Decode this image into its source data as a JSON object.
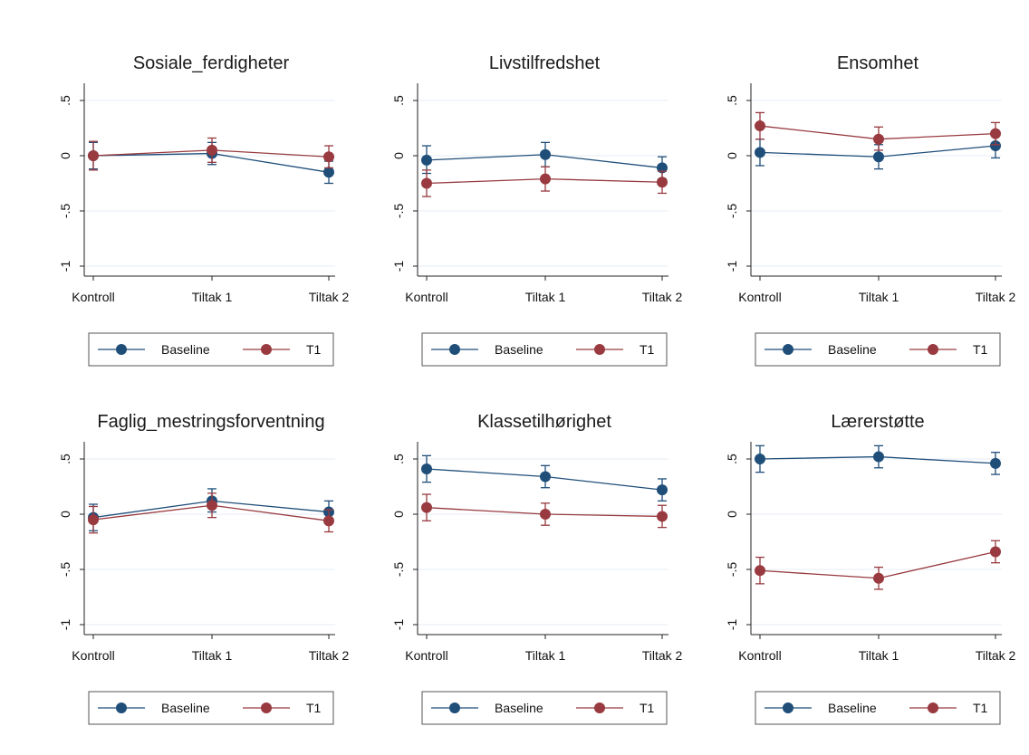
{
  "colors": {
    "baseline": "#1f4e79",
    "t1": "#983a3f",
    "grid": "#e6eef4",
    "axis": "#222222",
    "legend_border": "#555555"
  },
  "chart_data": [
    {
      "type": "line",
      "title": "Sosiale_ferdigheter",
      "categories": [
        "Kontroll",
        "Tiltak 1",
        "Tiltak 2"
      ],
      "yticks": [
        ".5",
        "0",
        "-.5",
        "-1"
      ],
      "ylim": [
        -1,
        0.65
      ],
      "grid": true,
      "legend_position": "bottom",
      "series": [
        {
          "name": "Baseline",
          "values": [
            0.0,
            0.02,
            -0.15
          ],
          "ci": [
            [
              -0.12,
              0.12
            ],
            [
              -0.08,
              0.12
            ],
            [
              -0.25,
              -0.05
            ]
          ]
        },
        {
          "name": "T1",
          "values": [
            0.0,
            0.05,
            -0.01
          ],
          "ci": [
            [
              -0.13,
              0.13
            ],
            [
              -0.06,
              0.16
            ],
            [
              -0.11,
              0.09
            ]
          ]
        }
      ]
    },
    {
      "type": "line",
      "title": "Livstilfredshet",
      "categories": [
        "Kontroll",
        "Tiltak 1",
        "Tiltak 2"
      ],
      "yticks": [
        ".5",
        "0",
        "-.5",
        "-1"
      ],
      "ylim": [
        -1,
        0.65
      ],
      "grid": true,
      "legend_position": "bottom",
      "series": [
        {
          "name": "Baseline",
          "values": [
            -0.04,
            0.01,
            -0.11
          ],
          "ci": [
            [
              -0.16,
              0.09
            ],
            [
              -0.1,
              0.12
            ],
            [
              -0.21,
              -0.01
            ]
          ]
        },
        {
          "name": "T1",
          "values": [
            -0.25,
            -0.21,
            -0.24
          ],
          "ci": [
            [
              -0.37,
              -0.13
            ],
            [
              -0.32,
              -0.1
            ],
            [
              -0.34,
              -0.14
            ]
          ]
        }
      ]
    },
    {
      "type": "line",
      "title": "Ensomhet",
      "categories": [
        "Kontroll",
        "Tiltak 1",
        "Tiltak 2"
      ],
      "yticks": [
        ".5",
        "0",
        "-.5",
        "-1"
      ],
      "ylim": [
        -1,
        0.65
      ],
      "grid": true,
      "legend_position": "bottom",
      "series": [
        {
          "name": "Baseline",
          "values": [
            0.03,
            -0.01,
            0.09
          ],
          "ci": [
            [
              -0.09,
              0.15
            ],
            [
              -0.12,
              0.1
            ],
            [
              -0.02,
              0.2
            ]
          ]
        },
        {
          "name": "T1",
          "values": [
            0.27,
            0.15,
            0.2
          ],
          "ci": [
            [
              0.15,
              0.39
            ],
            [
              0.05,
              0.26
            ],
            [
              0.1,
              0.3
            ]
          ]
        }
      ]
    },
    {
      "type": "line",
      "title": "Faglig_mestringsforventning",
      "categories": [
        "Kontroll",
        "Tiltak 1",
        "Tiltak 2"
      ],
      "yticks": [
        ".5",
        "0",
        "-.5",
        "-1"
      ],
      "ylim": [
        -1,
        0.65
      ],
      "grid": true,
      "legend_position": "bottom",
      "series": [
        {
          "name": "Baseline",
          "values": [
            -0.03,
            0.12,
            0.02
          ],
          "ci": [
            [
              -0.15,
              0.09
            ],
            [
              0.02,
              0.23
            ],
            [
              -0.08,
              0.12
            ]
          ]
        },
        {
          "name": "T1",
          "values": [
            -0.05,
            0.08,
            -0.06
          ],
          "ci": [
            [
              -0.17,
              0.07
            ],
            [
              -0.03,
              0.19
            ],
            [
              -0.16,
              0.04
            ]
          ]
        }
      ]
    },
    {
      "type": "line",
      "title": "Klassetilhørighet",
      "categories": [
        "Kontroll",
        "Tiltak 1",
        "Tiltak 2"
      ],
      "yticks": [
        ".5",
        "0",
        "-.5",
        "-1"
      ],
      "ylim": [
        -1,
        0.65
      ],
      "grid": true,
      "legend_position": "bottom",
      "series": [
        {
          "name": "Baseline",
          "values": [
            0.41,
            0.34,
            0.22
          ],
          "ci": [
            [
              0.29,
              0.53
            ],
            [
              0.24,
              0.44
            ],
            [
              0.12,
              0.32
            ]
          ]
        },
        {
          "name": "T1",
          "values": [
            0.06,
            0.0,
            -0.02
          ],
          "ci": [
            [
              -0.06,
              0.18
            ],
            [
              -0.1,
              0.1
            ],
            [
              -0.12,
              0.08
            ]
          ]
        }
      ]
    },
    {
      "type": "line",
      "title": "Lærerstøtte",
      "categories": [
        "Kontroll",
        "Tiltak 1",
        "Tiltak 2"
      ],
      "yticks": [
        ".5",
        "0",
        "-.5",
        "-1"
      ],
      "ylim": [
        -1,
        0.65
      ],
      "grid": true,
      "legend_position": "bottom",
      "series": [
        {
          "name": "Baseline",
          "values": [
            0.5,
            0.52,
            0.46
          ],
          "ci": [
            [
              0.38,
              0.62
            ],
            [
              0.42,
              0.62
            ],
            [
              0.36,
              0.56
            ]
          ]
        },
        {
          "name": "T1",
          "values": [
            -0.51,
            -0.58,
            -0.34
          ],
          "ci": [
            [
              -0.63,
              -0.39
            ],
            [
              -0.68,
              -0.48
            ],
            [
              -0.44,
              -0.24
            ]
          ]
        }
      ]
    }
  ]
}
